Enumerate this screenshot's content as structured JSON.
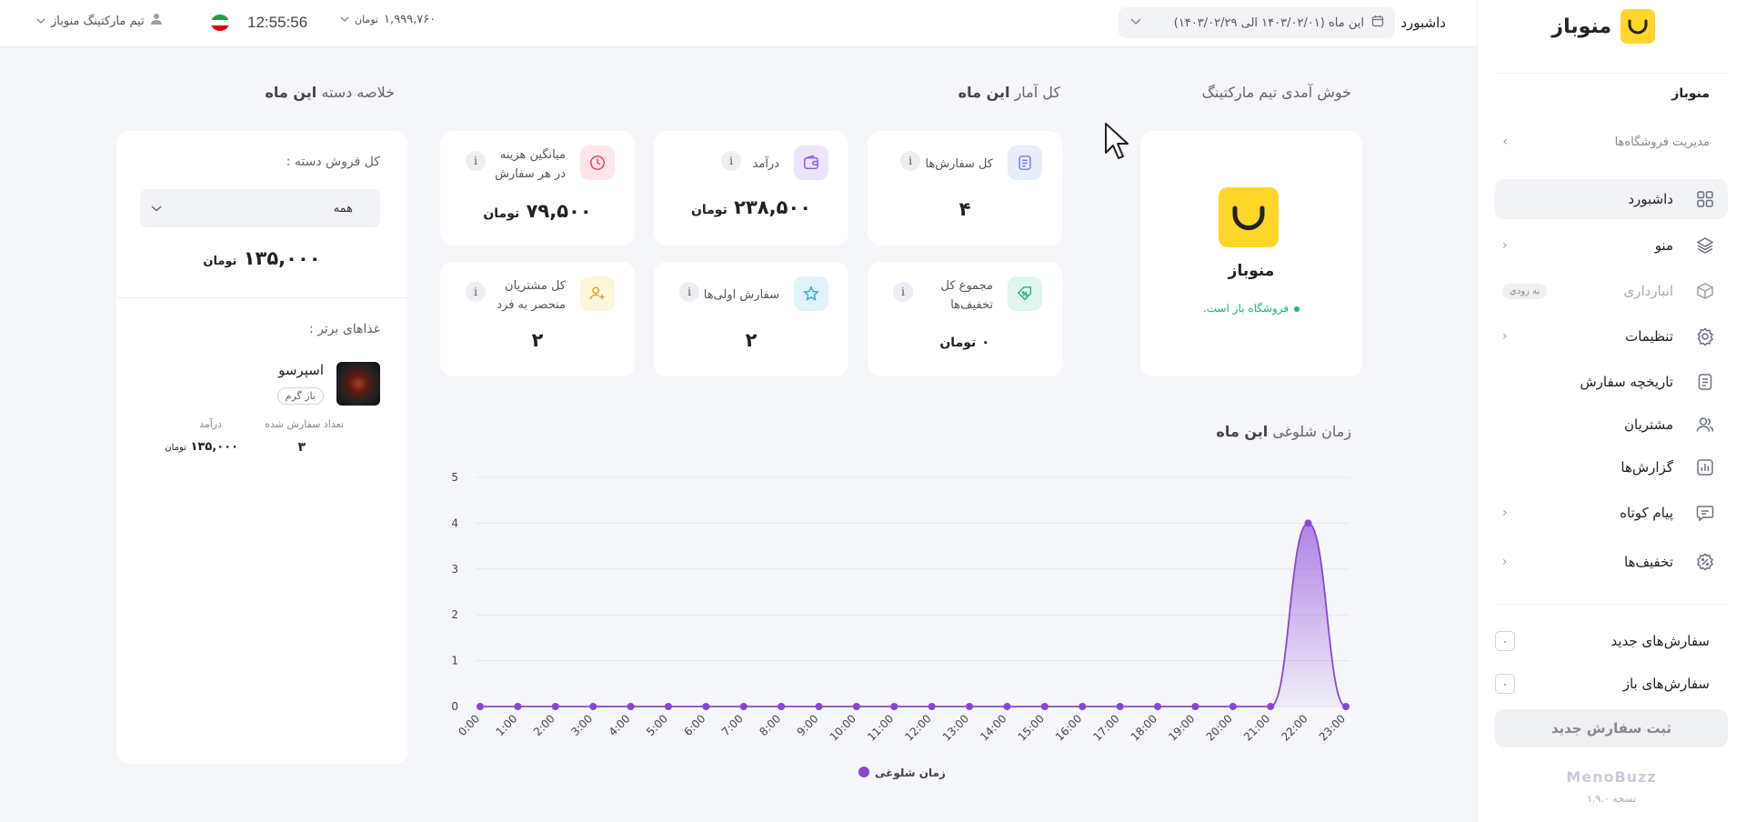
{
  "sidebar": {
    "logo_text": "منوباز",
    "store_name": "منوباز",
    "manage_stores": "مدیریت فروشگاه‌ها",
    "items": [
      {
        "label": "داشبورد",
        "icon": "grid-icon"
      },
      {
        "label": "منو",
        "icon": "layers-icon"
      },
      {
        "label": "انبارداری",
        "icon": "box-icon",
        "badge": "به زودی"
      },
      {
        "label": "تنظیمات",
        "icon": "gear-icon"
      },
      {
        "label": "تاریخچه سفارش",
        "icon": "document-icon"
      },
      {
        "label": "مشتریان",
        "icon": "users-icon"
      },
      {
        "label": "گزارش‌ها",
        "icon": "bar-chart-icon"
      },
      {
        "label": "پیام کوتاه",
        "icon": "message-icon"
      },
      {
        "label": "تخفیف‌ها",
        "icon": "discount-icon"
      }
    ],
    "new_orders_label": "سفارش‌های جدید",
    "new_orders_count": "۰",
    "open_orders_label": "سفارش‌های باز",
    "open_orders_count": "۰",
    "new_order_button": "ثبت سفارش جدید",
    "brand": "MenoBuzz",
    "version": "نسخه ۱.۹.۰"
  },
  "topbar": {
    "breadcrumb": "داشبورد",
    "date_range": "این ماه (۱۴۰۳/۰۲/۰۱ الی ۱۴۰۳/۰۲/۲۹)",
    "user": "تیم مارکتینگ منوباز",
    "time": "12:55:56",
    "balance": "۱,۹۹۹,۷۶۰",
    "balance_unit": "تومان"
  },
  "titles": {
    "welcome": "خوش آمدی تیم مارکتینگ",
    "stats_prefix": "کل آمار",
    "stats_suffix": "این ماه",
    "summary_prefix": "خلاصه دسته",
    "summary_suffix": "این ماه",
    "busy_prefix": "زمان شلوغی",
    "busy_suffix": "این ماه"
  },
  "welcome_card": {
    "name": "منوباز",
    "status": "فروشگاه باز است."
  },
  "stats": [
    {
      "label": "کل سفارش‌ها",
      "value": "۴",
      "unit": "",
      "icon": "document-icon",
      "color": "#e8ecfb",
      "icon_color": "#6b7fd7"
    },
    {
      "label": "درآمد",
      "value": "۲۳۸,۵۰۰",
      "unit": "تومان",
      "icon": "wallet-icon",
      "color": "#ece4fb",
      "icon_color": "#8a5cd8"
    },
    {
      "label": "میانگین هزینه",
      "label2": "در هر سفارش",
      "value": "۷۹,۵۰۰",
      "unit": "تومان",
      "icon": "clock-icon",
      "color": "#fde6ea",
      "icon_color": "#e0405c"
    },
    {
      "label": "مجموع کل",
      "label2": "تخفیف‌ها",
      "value": "۰",
      "unit": "تومان",
      "icon": "discount-icon",
      "color": "#dff5ee",
      "icon_color": "#2fae82"
    },
    {
      "label": "سفارش اولی‌ها",
      "value": "۲",
      "unit": "",
      "icon": "star-icon",
      "color": "#dff3fb",
      "icon_color": "#36a9d6"
    },
    {
      "label": "کل مشتریان",
      "label2": "منحصر به فرد",
      "value": "۲",
      "unit": "",
      "icon": "user-plus-icon",
      "color": "#fdf5dc",
      "icon_color": "#d6a826"
    }
  ],
  "summary": {
    "total_sales_label": "کل فروش دسته :",
    "category_selected": "همه",
    "total_value": "۱۳۵,۰۰۰",
    "total_unit": "تومان",
    "top_foods_label": "غذاهای برتر :",
    "top_food": {
      "name": "اسپرسو",
      "tag": "بار گرم",
      "orders_label": "تعداد سفارش شده",
      "orders_value": "۳",
      "revenue_label": "درآمد",
      "revenue_value": "۱۳۵,۰۰۰",
      "revenue_unit": "تومان"
    }
  },
  "chart_data": {
    "type": "area",
    "title": "زمان شلوغی این ماه",
    "x": [
      "0:00",
      "1:00",
      "2:00",
      "3:00",
      "4:00",
      "5:00",
      "6:00",
      "7:00",
      "8:00",
      "9:00",
      "10:00",
      "11:00",
      "12:00",
      "13:00",
      "14:00",
      "15:00",
      "16:00",
      "17:00",
      "18:00",
      "19:00",
      "20:00",
      "21:00",
      "22:00",
      "23:00"
    ],
    "series": [
      {
        "name": "زمان شلوغی",
        "values": [
          0,
          0,
          0,
          0,
          0,
          0,
          0,
          0,
          0,
          0,
          0,
          0,
          0,
          0,
          0,
          0,
          0,
          0,
          0,
          0,
          0,
          0,
          4,
          0
        ],
        "color": "#8a45d8"
      }
    ],
    "y_ticks": [
      0,
      1,
      2,
      3,
      4,
      5
    ],
    "ylim": [
      0,
      5
    ],
    "grid": true,
    "legend": "bottom"
  }
}
